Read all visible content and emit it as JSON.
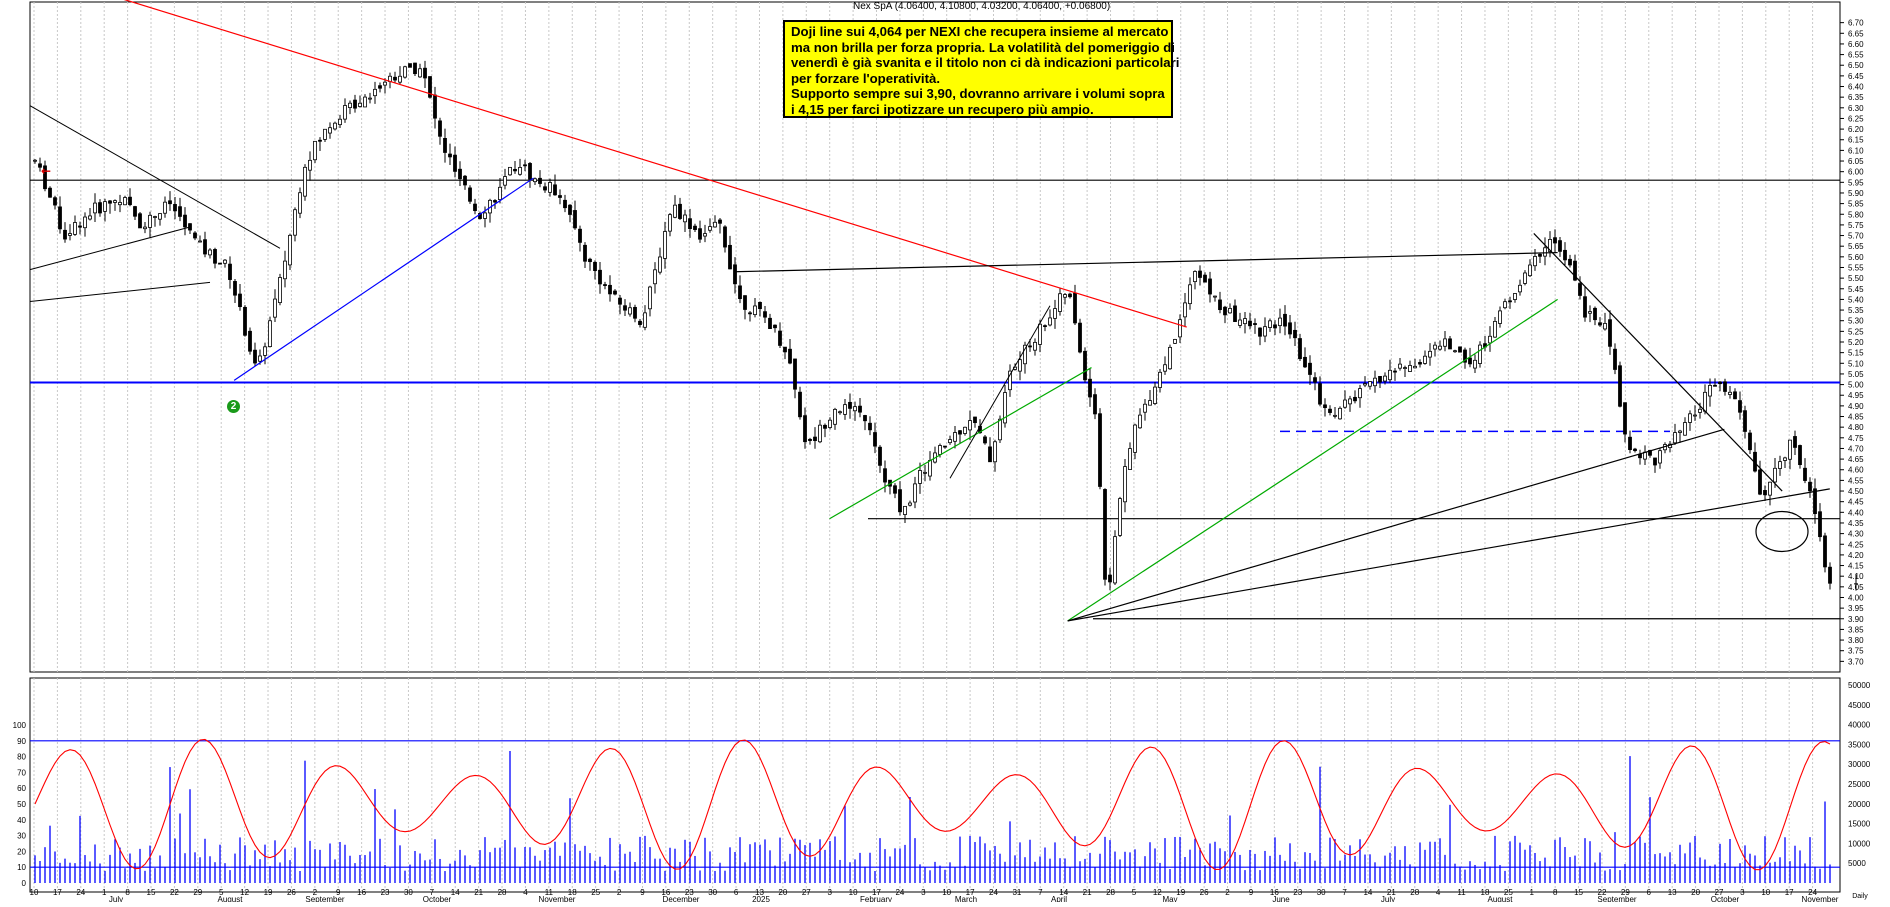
{
  "header": {
    "quote": "Nex SpA (4.06400, 4.10800, 4.03200, 4.06400, +0.06800)"
  },
  "annotation": {
    "lines": [
      "Doji line sui 4,064 per NEXI che recupera insieme al mercato",
      "ma non brilla per forza propria. La volatilità del pomeriggio di",
      "venerdì è già svanita e il titolo non ci dà indicazioni particolari",
      "per forzare l'operatività.",
      "Supporto sempre sui 3,90, dovranno arrivare i volumi sopra",
      "i 4,15 per farci ipotizzare un recupero più ampio."
    ]
  },
  "marker_label": "2",
  "colors": {
    "price": "#000000",
    "oscillator": "#ff0000",
    "volume": "#0000ff",
    "downtrend": "#ff0000",
    "uptrend_1": "#0000ff",
    "uptrend_2": "#00aa00",
    "support": "#0000ff",
    "annotation_bg": "#ffff00"
  },
  "chart_data": {
    "type": "candlestick",
    "price_axis": {
      "ylim": [
        3.65,
        6.75
      ],
      "ticks": [
        "3.70",
        "3.75",
        "3.80",
        "3.85",
        "3.90",
        "3.95",
        "4.00",
        "4.05",
        "4.10",
        "4.15",
        "4.20",
        "4.25",
        "4.30",
        "4.35",
        "4.40",
        "4.45",
        "4.50",
        "4.55",
        "4.60",
        "4.65",
        "4.70",
        "4.75",
        "4.80",
        "4.85",
        "4.90",
        "4.95",
        "5.00",
        "5.05",
        "5.10",
        "5.15",
        "5.20",
        "5.25",
        "5.30",
        "5.35",
        "5.40",
        "5.45",
        "5.50",
        "5.55",
        "5.60",
        "5.65",
        "5.70",
        "5.75",
        "5.80",
        "5.85",
        "5.90",
        "5.95",
        "6.00",
        "6.05",
        "6.10",
        "6.15",
        "6.20",
        "6.25",
        "6.30",
        "6.35",
        "6.40",
        "6.45",
        "6.50",
        "6.55",
        "6.60",
        "6.65",
        "6.70"
      ]
    },
    "oscillator_axis": {
      "ylim": [
        0,
        100
      ],
      "ticks": [
        "0",
        "10",
        "20",
        "30",
        "40",
        "50",
        "60",
        "70",
        "80",
        "90",
        "100"
      ],
      "levels": [
        10,
        90
      ]
    },
    "volume_axis": {
      "ylim": [
        0,
        50000
      ],
      "ticks": [
        "5000",
        "10000",
        "15000",
        "20000",
        "25000",
        "30000",
        "35000",
        "40000",
        "45000",
        "50000"
      ]
    },
    "x_day_ticks": [
      "10",
      "17",
      "24",
      "1",
      "8",
      "15",
      "22",
      "29",
      "5",
      "12",
      "19",
      "26",
      "2",
      "9",
      "16",
      "23",
      "30",
      "7",
      "14",
      "21",
      "28",
      "4",
      "11",
      "18",
      "25",
      "2",
      "9",
      "16",
      "23",
      "30",
      "6",
      "13",
      "20",
      "27",
      "3",
      "10",
      "17",
      "24",
      "3",
      "10",
      "17",
      "24",
      "31",
      "7",
      "14",
      "21",
      "28",
      "5",
      "12",
      "19",
      "26",
      "2",
      "9",
      "16",
      "23",
      "30",
      "7",
      "14",
      "21",
      "28",
      "4",
      "11",
      "18",
      "25",
      "1",
      "8",
      "15",
      "22",
      "29",
      "6",
      "13",
      "20",
      "27",
      "3",
      "10",
      "17",
      "24"
    ],
    "x_month_labels": [
      "July",
      "August",
      "September",
      "October",
      "November",
      "December",
      "2025",
      "February",
      "March",
      "April",
      "May",
      "June",
      "July",
      "August",
      "September",
      "October",
      "November"
    ],
    "x_axis_note": "Daily",
    "horizontal_levels": [
      {
        "price": 5.96,
        "color": "#000000"
      },
      {
        "price": 5.01,
        "color": "#0000ff"
      },
      {
        "price": 4.37,
        "color": "#000000"
      },
      {
        "price": 3.9,
        "color": "#000000"
      }
    ],
    "trendlines": [
      {
        "color": "#ff0000",
        "from": [
          "2024-06-05",
          6.95
        ],
        "to": [
          "2025-05-12",
          5.27
        ]
      },
      {
        "color": "#0000ff",
        "from": [
          "2024-08-05",
          5.02
        ],
        "to": [
          "2024-11-01",
          5.97
        ]
      },
      {
        "color": "#00aa00",
        "from": [
          "2025-01-27",
          4.37
        ],
        "to": [
          "2025-04-14",
          5.08
        ]
      },
      {
        "color": "#00aa00",
        "from": [
          "2025-04-07",
          3.89
        ],
        "to": [
          "2025-08-29",
          5.4
        ]
      },
      {
        "color": "#000000",
        "from": [
          "2025-04-07",
          3.89
        ],
        "to": [
          "2025-10-17",
          4.79
        ]
      },
      {
        "color": "#000000",
        "from": [
          "2025-04-07",
          3.89
        ],
        "to": [
          "2025-11-17",
          4.51
        ]
      },
      {
        "color": "#000000",
        "from": [
          "2025-08-22",
          5.71
        ],
        "to": [
          "2025-11-03",
          4.5
        ]
      },
      {
        "color": "#000000",
        "from": [
          "2024-12-30",
          5.53
        ],
        "to": [
          "2025-08-29",
          5.62
        ]
      }
    ],
    "last_candle": {
      "open": 4.064,
      "high": 4.108,
      "low": 4.032,
      "close": 4.064
    }
  }
}
